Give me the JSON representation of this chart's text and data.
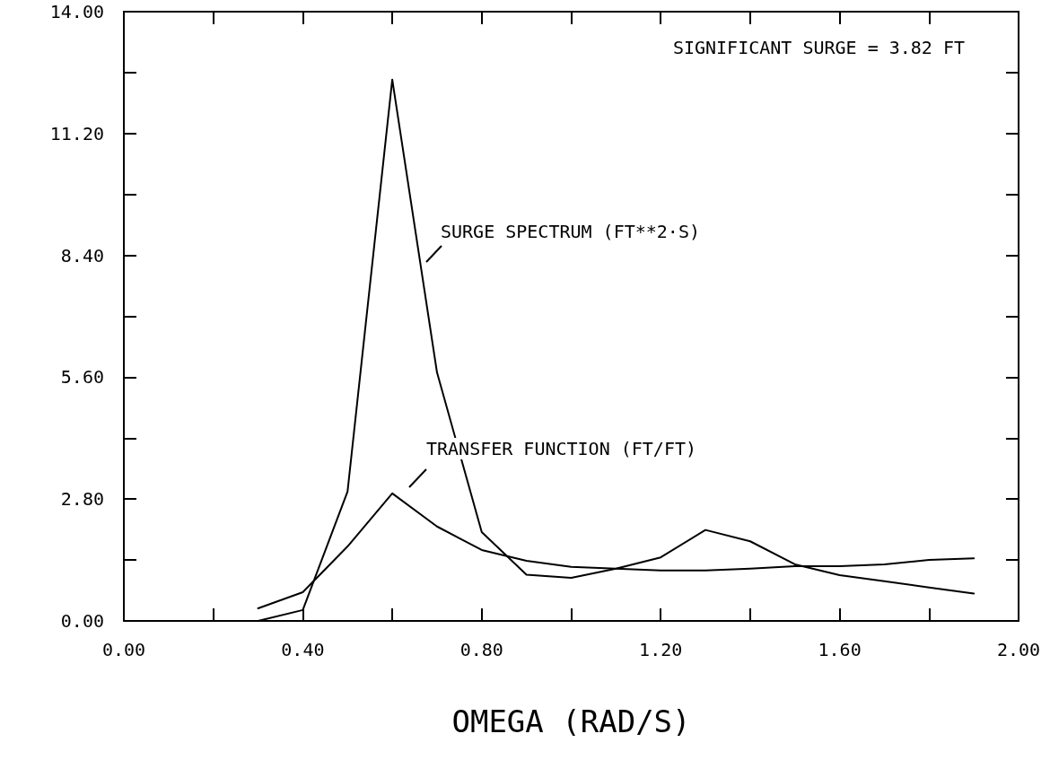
{
  "chart_data": {
    "type": "line",
    "xlabel": "OMEGA (RAD/S)",
    "x": [
      0.3,
      0.4,
      0.5,
      0.6,
      0.7,
      0.8,
      0.9,
      1.0,
      1.1,
      1.2,
      1.3,
      1.4,
      1.5,
      1.6,
      1.7,
      1.8,
      1.9
    ],
    "series": [
      {
        "color": "#000000",
        "values": [
          0.0,
          0.25,
          2.97,
          12.44,
          5.71,
          2.04,
          1.06,
          0.99,
          1.2,
          1.46,
          2.09,
          1.83,
          1.3,
          1.05,
          0.91,
          0.77,
          0.63
        ]
      },
      {
        "color": "#000000",
        "values": [
          0.29,
          0.66,
          1.71,
          2.93,
          2.17,
          1.63,
          1.38,
          1.24,
          1.2,
          1.16,
          1.16,
          1.2,
          1.26,
          1.26,
          1.3,
          1.4,
          1.44
        ]
      }
    ],
    "xlim": [
      0,
      2
    ],
    "ylim": [
      0,
      14
    ],
    "xticks": [
      {
        "value": 0,
        "label": "0.00"
      },
      {
        "value": 0.2,
        "label": null
      },
      {
        "value": 0.4,
        "label": "0.40"
      },
      {
        "value": 0.6,
        "label": null
      },
      {
        "value": 0.8,
        "label": "0.80"
      },
      {
        "value": 1.0,
        "label": null
      },
      {
        "value": 1.2,
        "label": "1.20"
      },
      {
        "value": 1.4,
        "label": null
      },
      {
        "value": 1.6,
        "label": "1.60"
      },
      {
        "value": 1.8,
        "label": null
      },
      {
        "value": 2.0,
        "label": "2.00"
      }
    ],
    "yticks": [
      {
        "value": 0,
        "label": "0.00"
      },
      {
        "value": 1.4,
        "label": null
      },
      {
        "value": 2.8,
        "label": "2.80"
      },
      {
        "value": 4.2,
        "label": null
      },
      {
        "value": 5.6,
        "label": "5.60"
      },
      {
        "value": 7.0,
        "label": null
      },
      {
        "value": 8.4,
        "label": "8.40"
      },
      {
        "value": 9.8,
        "label": null
      },
      {
        "value": 11.2,
        "label": "11.20"
      },
      {
        "value": 12.6,
        "label": null
      },
      {
        "value": 14.0,
        "label": "14.00"
      }
    ],
    "annotations": [
      "SIGNIFICANT SURGE = 3.82 FT",
      "SURGE SPECTRUM (FT**2·S)",
      "TRANSFER FUNCTION (FT/FT)"
    ],
    "grid": false,
    "marker": "none",
    "line_style": "solid"
  }
}
